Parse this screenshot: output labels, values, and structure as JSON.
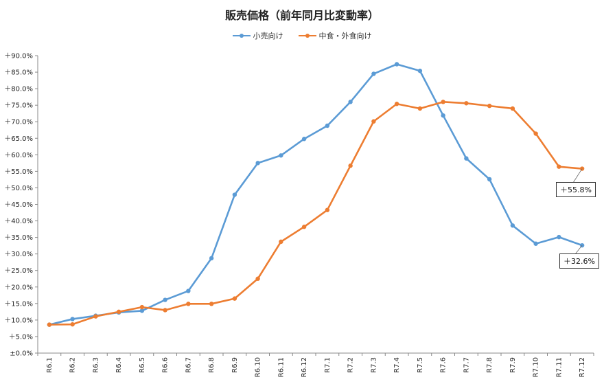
{
  "chart_data": {
    "type": "line",
    "title": "販売価格（前年同月比変動率）",
    "categories": [
      "R6.1",
      "R6.2",
      "R6.3",
      "R6.4",
      "R6.5",
      "R6.6",
      "R6.7",
      "R6.8",
      "R6.9",
      "R6.10",
      "R6.11",
      "R6.12",
      "R7.1",
      "R7.2",
      "R7.3",
      "R7.4",
      "R7.5",
      "R7.6",
      "R7.7",
      "R7.8",
      "R7.9",
      "R7.10",
      "R7.11",
      "R7.12"
    ],
    "y_ticks": [
      "±0.0%",
      "＋5.0%",
      "＋10.0%",
      "＋15.0%",
      "＋20.0%",
      "＋25.0%",
      "＋30.0%",
      "＋35.0%",
      "＋40.0%",
      "＋45.0%",
      "＋50.0%",
      "＋55.0%",
      "＋60.0%",
      "＋65.0%",
      "＋70.0%",
      "＋75.0%",
      "＋80.0%",
      "＋85.0%",
      "＋90.0%"
    ],
    "ylim": [
      0,
      90
    ],
    "grid": false,
    "legend_position": "top",
    "series": [
      {
        "name": "小売向け",
        "color": "#5b9bd5",
        "values": [
          8.6,
          10.3,
          11.3,
          12.3,
          12.8,
          16.1,
          18.8,
          28.7,
          47.9,
          57.5,
          59.8,
          64.8,
          68.8,
          76.0,
          84.5,
          87.4,
          85.4,
          71.9,
          58.9,
          52.6,
          38.6,
          33.1,
          35.1,
          32.6
        ]
      },
      {
        "name": "中食・外食向け",
        "color": "#ed7d31",
        "values": [
          8.6,
          8.7,
          11.1,
          12.5,
          13.9,
          13.0,
          14.9,
          14.9,
          16.5,
          22.5,
          33.7,
          38.2,
          43.3,
          56.7,
          70.1,
          75.4,
          74.0,
          76.0,
          75.6,
          74.8,
          74.0,
          66.4,
          56.4,
          55.8
        ]
      }
    ],
    "annotations": [
      {
        "series": "中食・外食向け",
        "category": "R7.12",
        "text": "＋55.8%"
      },
      {
        "series": "小売向け",
        "category": "R7.12",
        "text": "＋32.6%"
      }
    ]
  }
}
